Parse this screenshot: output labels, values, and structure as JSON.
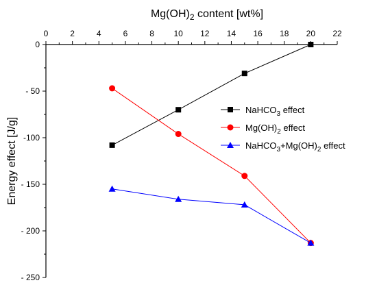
{
  "chart_data": {
    "type": "line",
    "xlabel": {
      "base": "Mg(OH)",
      "sub": "2",
      "rest": " content [wt%]"
    },
    "ylabel": "Energy effect [J/g]",
    "xlim": [
      0,
      22
    ],
    "ylim": [
      -250,
      0
    ],
    "x_axis_position": "top",
    "grid": false,
    "legend_position": "right",
    "x_ticks": [
      "0",
      "2",
      "4",
      "6",
      "8",
      "10",
      "12",
      "14",
      "16",
      "18",
      "20",
      "22"
    ],
    "y_ticks": [
      "0",
      "- 50",
      "-100",
      "- 150",
      "- 200",
      "- 250"
    ],
    "series": [
      {
        "name_parts": [
          {
            "t": "NaHCO"
          },
          {
            "t": "3",
            "sub": true
          },
          {
            "t": " effect"
          }
        ],
        "color": "#000000",
        "marker": "square",
        "x": [
          5,
          10,
          15,
          20
        ],
        "y": [
          -108,
          -70,
          -31,
          0
        ]
      },
      {
        "name_parts": [
          {
            "t": "Mg(OH)"
          },
          {
            "t": "2",
            "sub": true
          },
          {
            "t": " effect"
          }
        ],
        "color": "#ff0000",
        "marker": "circle",
        "x": [
          5,
          10,
          15,
          20
        ],
        "y": [
          -47,
          -96,
          -141,
          -213
        ]
      },
      {
        "name_parts": [
          {
            "t": "NaHCO"
          },
          {
            "t": "3",
            "sub": true
          },
          {
            "t": "+Mg(OH)"
          },
          {
            "t": "2",
            "sub": true
          },
          {
            "t": " effect"
          }
        ],
        "color": "#0000ff",
        "marker": "triangle",
        "x": [
          5,
          10,
          15,
          20
        ],
        "y": [
          -155,
          -166,
          -172,
          -213
        ]
      }
    ]
  }
}
